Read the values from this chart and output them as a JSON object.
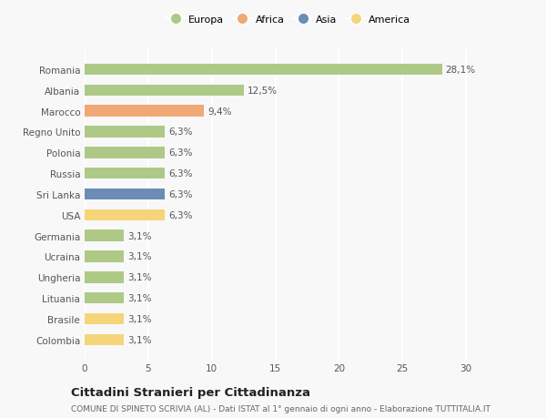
{
  "countries": [
    "Romania",
    "Albania",
    "Marocco",
    "Regno Unito",
    "Polonia",
    "Russia",
    "Sri Lanka",
    "USA",
    "Germania",
    "Ucraina",
    "Ungheria",
    "Lituania",
    "Brasile",
    "Colombia"
  ],
  "values": [
    28.1,
    12.5,
    9.4,
    6.3,
    6.3,
    6.3,
    6.3,
    6.3,
    3.1,
    3.1,
    3.1,
    3.1,
    3.1,
    3.1
  ],
  "labels": [
    "28,1%",
    "12,5%",
    "9,4%",
    "6,3%",
    "6,3%",
    "6,3%",
    "6,3%",
    "6,3%",
    "3,1%",
    "3,1%",
    "3,1%",
    "3,1%",
    "3,1%",
    "3,1%"
  ],
  "colors": [
    "#aec986",
    "#aec986",
    "#f0a875",
    "#aec986",
    "#aec986",
    "#aec986",
    "#6b8db5",
    "#f5d57a",
    "#aec986",
    "#aec986",
    "#aec986",
    "#aec986",
    "#f5d57a",
    "#f5d57a"
  ],
  "legend": [
    {
      "label": "Europa",
      "color": "#aec986"
    },
    {
      "label": "Africa",
      "color": "#f0a875"
    },
    {
      "label": "Asia",
      "color": "#6b8db5"
    },
    {
      "label": "America",
      "color": "#f5d57a"
    }
  ],
  "xlim": [
    0,
    32
  ],
  "xticks": [
    0,
    5,
    10,
    15,
    20,
    25,
    30
  ],
  "title": "Cittadini Stranieri per Cittadinanza",
  "subtitle": "COMUNE DI SPINETO SCRIVIA (AL) - Dati ISTAT al 1° gennaio di ogni anno - Elaborazione TUTTITALIA.IT",
  "background_color": "#f8f8f8",
  "grid_color": "#ffffff",
  "bar_height": 0.55,
  "label_fontsize": 7.5,
  "tick_fontsize": 7.5,
  "ytick_fontsize": 7.5,
  "title_fontsize": 9.5,
  "subtitle_fontsize": 6.5,
  "legend_fontsize": 8
}
